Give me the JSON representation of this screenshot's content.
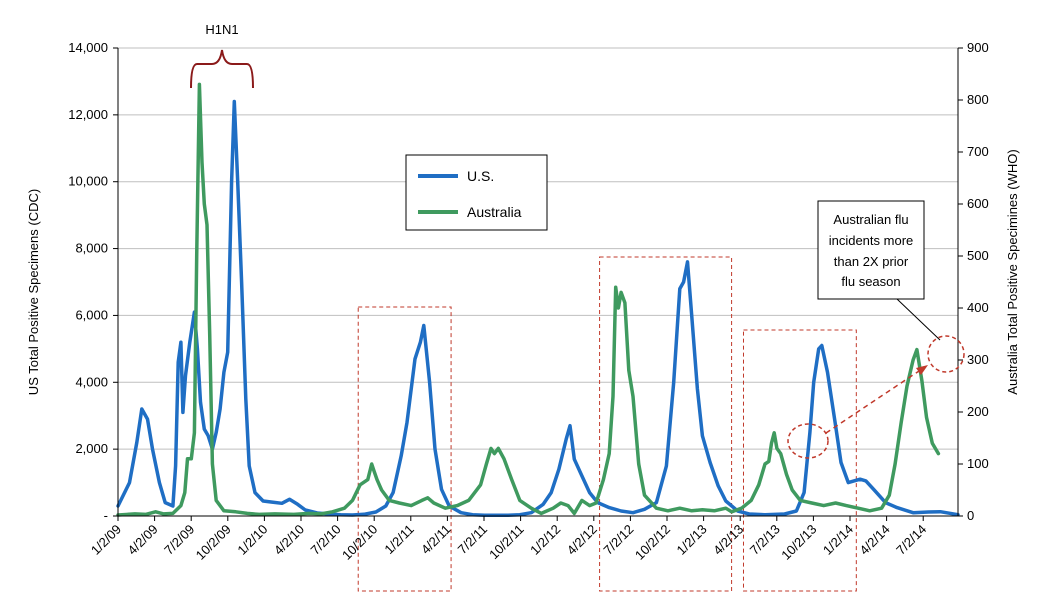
{
  "chart_data": {
    "type": "line",
    "title": "",
    "ylabel": "US Total Positive Specimens (CDC)",
    "y2label": "Australia Total Positive Specimines (WHO)",
    "ylim": [
      0,
      14000
    ],
    "y2lim": [
      0,
      900
    ],
    "yticks": [
      0,
      2000,
      4000,
      6000,
      8000,
      10000,
      12000,
      14000
    ],
    "yticklabels": [
      "-",
      "2,000",
      "4,000",
      "6,000",
      "8,000",
      "10,000",
      "12,000",
      "14,000"
    ],
    "y2ticks": [
      0,
      100,
      200,
      300,
      400,
      500,
      600,
      700,
      800,
      900
    ],
    "xlim": [
      "2009-01-02",
      "2014-12-31"
    ],
    "xticklabels": [
      "1/2/09",
      "4/2/09",
      "7/2/09",
      "10/2/09",
      "1/2/10",
      "4/2/10",
      "7/2/10",
      "10/2/10",
      "1/2/11",
      "4/2/11",
      "7/2/11",
      "10/2/11",
      "1/2/12",
      "4/2/12",
      "7/2/12",
      "10/2/12",
      "1/2/13",
      "4/2/13",
      "7/2/13",
      "10/2/13",
      "1/2/14",
      "4/2/14",
      "7/2/14"
    ],
    "grid": "horizontal",
    "legend": "upper-center",
    "series": [
      {
        "name": "U.S.",
        "axis": "left",
        "color": "#1f6ec4",
        "points": [
          [
            "2009-01-02",
            300
          ],
          [
            "2009-02-01",
            1000
          ],
          [
            "2009-02-20",
            2200
          ],
          [
            "2009-03-05",
            3200
          ],
          [
            "2009-03-20",
            2900
          ],
          [
            "2009-04-02",
            2000
          ],
          [
            "2009-04-20",
            1000
          ],
          [
            "2009-05-05",
            400
          ],
          [
            "2009-05-25",
            300
          ],
          [
            "2009-06-01",
            1500
          ],
          [
            "2009-06-08",
            4600
          ],
          [
            "2009-06-15",
            5200
          ],
          [
            "2009-06-20",
            3100
          ],
          [
            "2009-06-27",
            4200
          ],
          [
            "2009-07-08",
            5200
          ],
          [
            "2009-07-20",
            6100
          ],
          [
            "2009-07-28",
            5000
          ],
          [
            "2009-08-05",
            3400
          ],
          [
            "2009-08-15",
            2600
          ],
          [
            "2009-08-25",
            2400
          ],
          [
            "2009-09-05",
            2000
          ],
          [
            "2009-09-15",
            2500
          ],
          [
            "2009-09-25",
            3200
          ],
          [
            "2009-10-05",
            4300
          ],
          [
            "2009-10-15",
            4900
          ],
          [
            "2009-10-25",
            10000
          ],
          [
            "2009-11-01",
            12400
          ],
          [
            "2009-11-10",
            10000
          ],
          [
            "2009-11-20",
            7000
          ],
          [
            "2009-12-01",
            3500
          ],
          [
            "2009-12-10",
            1500
          ],
          [
            "2009-12-25",
            700
          ],
          [
            "2010-01-15",
            450
          ],
          [
            "2010-02-05",
            420
          ],
          [
            "2010-03-05",
            380
          ],
          [
            "2010-03-25",
            500
          ],
          [
            "2010-04-15",
            350
          ],
          [
            "2010-05-05",
            180
          ],
          [
            "2010-06-05",
            90
          ],
          [
            "2010-07-05",
            60
          ],
          [
            "2010-08-05",
            40
          ],
          [
            "2010-09-05",
            30
          ],
          [
            "2010-10-05",
            50
          ],
          [
            "2010-11-05",
            120
          ],
          [
            "2010-12-01",
            300
          ],
          [
            "2010-12-20",
            700
          ],
          [
            "2011-01-10",
            1800
          ],
          [
            "2011-01-25",
            2800
          ],
          [
            "2011-02-15",
            4700
          ],
          [
            "2011-03-01",
            5200
          ],
          [
            "2011-03-10",
            5700
          ],
          [
            "2011-03-25",
            4000
          ],
          [
            "2011-04-08",
            2000
          ],
          [
            "2011-04-25",
            800
          ],
          [
            "2011-05-15",
            300
          ],
          [
            "2011-06-15",
            100
          ],
          [
            "2011-07-15",
            40
          ],
          [
            "2011-08-15",
            25
          ],
          [
            "2011-10-15",
            20
          ],
          [
            "2011-11-15",
            40
          ],
          [
            "2011-12-15",
            100
          ],
          [
            "2012-01-15",
            350
          ],
          [
            "2012-02-05",
            700
          ],
          [
            "2012-02-25",
            1400
          ],
          [
            "2012-03-15",
            2300
          ],
          [
            "2012-03-25",
            2700
          ],
          [
            "2012-04-05",
            1700
          ],
          [
            "2012-04-25",
            1200
          ],
          [
            "2012-05-15",
            700
          ],
          [
            "2012-06-05",
            400
          ],
          [
            "2012-07-05",
            250
          ],
          [
            "2012-08-05",
            150
          ],
          [
            "2012-09-05",
            100
          ],
          [
            "2012-10-05",
            200
          ],
          [
            "2012-11-05",
            400
          ],
          [
            "2012-12-01",
            1500
          ],
          [
            "2012-12-20",
            4000
          ],
          [
            "2013-01-05",
            6800
          ],
          [
            "2013-01-15",
            7000
          ],
          [
            "2013-01-25",
            7600
          ],
          [
            "2013-02-05",
            6000
          ],
          [
            "2013-02-20",
            3800
          ],
          [
            "2013-03-05",
            2400
          ],
          [
            "2013-03-25",
            1600
          ],
          [
            "2013-04-15",
            900
          ],
          [
            "2013-05-05",
            450
          ],
          [
            "2013-06-05",
            150
          ],
          [
            "2013-07-05",
            60
          ],
          [
            "2013-08-15",
            40
          ],
          [
            "2013-10-05",
            60
          ],
          [
            "2013-11-05",
            150
          ],
          [
            "2013-11-25",
            700
          ],
          [
            "2013-12-10",
            2500
          ],
          [
            "2013-12-20",
            4000
          ],
          [
            "2014-01-02",
            5000
          ],
          [
            "2014-01-10",
            5100
          ],
          [
            "2014-01-25",
            4300
          ],
          [
            "2014-02-15",
            2700
          ],
          [
            "2014-03-01",
            1600
          ],
          [
            "2014-03-20",
            1000
          ],
          [
            "2014-04-20",
            1100
          ],
          [
            "2014-05-05",
            1050
          ],
          [
            "2014-05-25",
            800
          ],
          [
            "2014-06-25",
            400
          ],
          [
            "2014-07-25",
            250
          ],
          [
            "2014-09-05",
            100
          ],
          [
            "2014-10-15",
            120
          ],
          [
            "2014-11-15",
            130
          ],
          [
            "2014-12-10",
            80
          ],
          [
            "2014-12-31",
            40
          ]
        ]
      },
      {
        "name": "Australia",
        "axis": "right",
        "color": "#3f9a5f",
        "points": [
          [
            "2009-01-02",
            2
          ],
          [
            "2009-02-15",
            4
          ],
          [
            "2009-03-15",
            3
          ],
          [
            "2009-04-10",
            8
          ],
          [
            "2009-05-01",
            4
          ],
          [
            "2009-05-25",
            5
          ],
          [
            "2009-06-15",
            20
          ],
          [
            "2009-06-25",
            45
          ],
          [
            "2009-07-02",
            110
          ],
          [
            "2009-07-12",
            110
          ],
          [
            "2009-07-20",
            160
          ],
          [
            "2009-07-26",
            500
          ],
          [
            "2009-08-02",
            830
          ],
          [
            "2009-08-09",
            680
          ],
          [
            "2009-08-15",
            600
          ],
          [
            "2009-08-22",
            560
          ],
          [
            "2009-08-29",
            350
          ],
          [
            "2009-09-05",
            100
          ],
          [
            "2009-09-15",
            30
          ],
          [
            "2009-10-05",
            10
          ],
          [
            "2009-11-05",
            8
          ],
          [
            "2009-12-05",
            5
          ],
          [
            "2010-01-05",
            3
          ],
          [
            "2010-02-15",
            4
          ],
          [
            "2010-04-05",
            3
          ],
          [
            "2010-05-15",
            5
          ],
          [
            "2010-06-15",
            4
          ],
          [
            "2010-07-15",
            8
          ],
          [
            "2010-08-15",
            15
          ],
          [
            "2010-09-05",
            30
          ],
          [
            "2010-09-25",
            60
          ],
          [
            "2010-10-15",
            70
          ],
          [
            "2010-10-25",
            100
          ],
          [
            "2010-11-01",
            85
          ],
          [
            "2010-11-08",
            70
          ],
          [
            "2010-11-20",
            50
          ],
          [
            "2010-12-10",
            30
          ],
          [
            "2011-01-05",
            25
          ],
          [
            "2011-02-05",
            20
          ],
          [
            "2011-03-05",
            30
          ],
          [
            "2011-03-20",
            35
          ],
          [
            "2011-04-05",
            25
          ],
          [
            "2011-05-05",
            15
          ],
          [
            "2011-06-05",
            20
          ],
          [
            "2011-07-05",
            30
          ],
          [
            "2011-08-05",
            60
          ],
          [
            "2011-08-20",
            100
          ],
          [
            "2011-09-01",
            130
          ],
          [
            "2011-09-10",
            120
          ],
          [
            "2011-09-20",
            130
          ],
          [
            "2011-10-05",
            110
          ],
          [
            "2011-10-25",
            70
          ],
          [
            "2011-11-15",
            30
          ],
          [
            "2011-12-15",
            15
          ],
          [
            "2012-01-10",
            5
          ],
          [
            "2012-02-10",
            15
          ],
          [
            "2012-03-01",
            25
          ],
          [
            "2012-03-20",
            20
          ],
          [
            "2012-04-05",
            5
          ],
          [
            "2012-04-25",
            30
          ],
          [
            "2012-05-15",
            20
          ],
          [
            "2012-06-01",
            25
          ],
          [
            "2012-06-20",
            70
          ],
          [
            "2012-07-05",
            120
          ],
          [
            "2012-07-15",
            230
          ],
          [
            "2012-07-22",
            440
          ],
          [
            "2012-07-29",
            400
          ],
          [
            "2012-08-05",
            430
          ],
          [
            "2012-08-15",
            410
          ],
          [
            "2012-08-25",
            280
          ],
          [
            "2012-09-05",
            230
          ],
          [
            "2012-09-20",
            100
          ],
          [
            "2012-10-05",
            40
          ],
          [
            "2012-11-05",
            15
          ],
          [
            "2012-12-05",
            10
          ],
          [
            "2013-01-05",
            15
          ],
          [
            "2013-02-05",
            10
          ],
          [
            "2013-03-05",
            12
          ],
          [
            "2013-04-05",
            10
          ],
          [
            "2013-05-05",
            15
          ],
          [
            "2013-05-20",
            8
          ],
          [
            "2013-06-15",
            15
          ],
          [
            "2013-07-10",
            30
          ],
          [
            "2013-07-30",
            60
          ],
          [
            "2013-08-15",
            100
          ],
          [
            "2013-08-25",
            105
          ],
          [
            "2013-09-01",
            140
          ],
          [
            "2013-09-08",
            160
          ],
          [
            "2013-09-15",
            130
          ],
          [
            "2013-09-25",
            120
          ],
          [
            "2013-10-10",
            80
          ],
          [
            "2013-10-25",
            50
          ],
          [
            "2013-11-15",
            30
          ],
          [
            "2013-12-15",
            25
          ],
          [
            "2014-01-15",
            20
          ],
          [
            "2014-02-15",
            25
          ],
          [
            "2014-03-15",
            20
          ],
          [
            "2014-04-15",
            15
          ],
          [
            "2014-05-15",
            10
          ],
          [
            "2014-06-15",
            15
          ],
          [
            "2014-07-05",
            40
          ],
          [
            "2014-07-20",
            100
          ],
          [
            "2014-08-05",
            180
          ],
          [
            "2014-08-20",
            250
          ],
          [
            "2014-09-05",
            300
          ],
          [
            "2014-09-15",
            320
          ],
          [
            "2014-09-28",
            260
          ],
          [
            "2014-10-10",
            190
          ],
          [
            "2014-10-25",
            140
          ],
          [
            "2014-11-10",
            120
          ]
        ]
      }
    ],
    "annotations": {
      "h1n1_label": "H1N1",
      "note_lines": [
        "Australian flu",
        "incidents more",
        "than 2X prior",
        "flu season"
      ]
    }
  },
  "colors": {
    "us": "#1f6ec4",
    "australia": "#3f9a5f",
    "highlight": "#c0392b",
    "brace": "#8b1a1a",
    "grid": "#bfbfbf"
  }
}
